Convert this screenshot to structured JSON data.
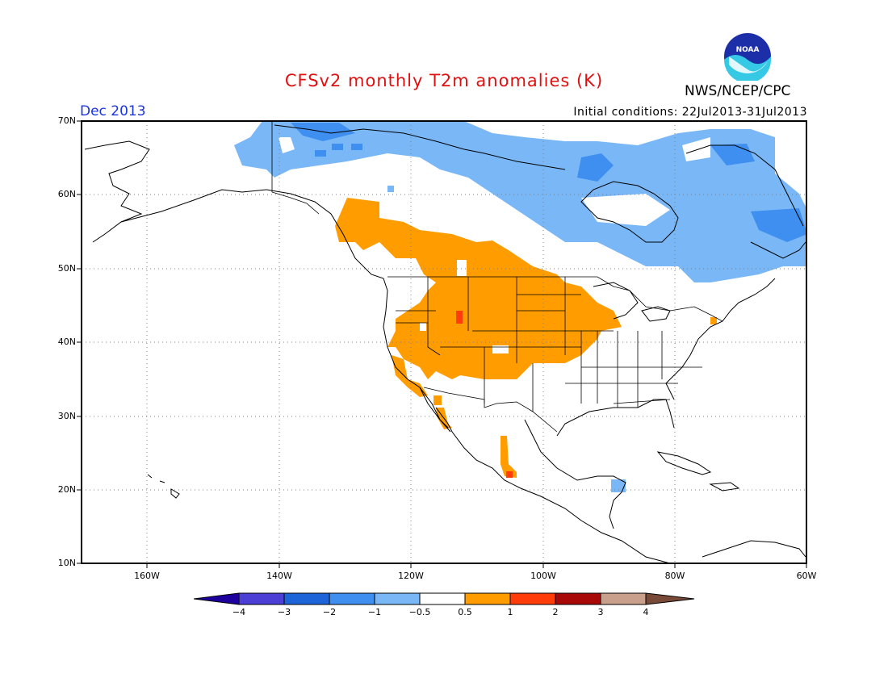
{
  "title": "CFSv2 monthly T2m anomalies (K)",
  "agency": "NWS/NCEP/CPC",
  "logo_text": "NOAA",
  "month": "Dec 2013",
  "initial_conditions": "Initial conditions: 22Jul2013-31Jul2013",
  "lat_labels": [
    "70N",
    "60N",
    "50N",
    "40N",
    "30N",
    "20N",
    "10N"
  ],
  "lon_labels": [
    "160W",
    "140W",
    "120W",
    "100W",
    "80W",
    "60W"
  ],
  "colorbar": {
    "labels": [
      "-4",
      "-3",
      "-2",
      "-1",
      "-0.5",
      "0.5",
      "1",
      "2",
      "3",
      "4"
    ],
    "colors": {
      "lt_m4": "#1e009e",
      "m4_m3": "#4b3fd6",
      "m3_m2": "#1c64d8",
      "m2_m1": "#3f8ff0",
      "m1_m05": "#79b7f7",
      "m05_05": "#ffffff",
      "05_1": "#ff9d00",
      "1_2": "#ff3c0a",
      "2_3": "#a80808",
      "3_4": "#c8a08c",
      "gt_4": "#7a4a38"
    }
  },
  "map": {
    "projection": "lat-lon",
    "lon_range": [
      -170,
      -60
    ],
    "lat_range": [
      10,
      70
    ],
    "grid": "dotted every 20 deg lon, 10 deg lat"
  }
}
